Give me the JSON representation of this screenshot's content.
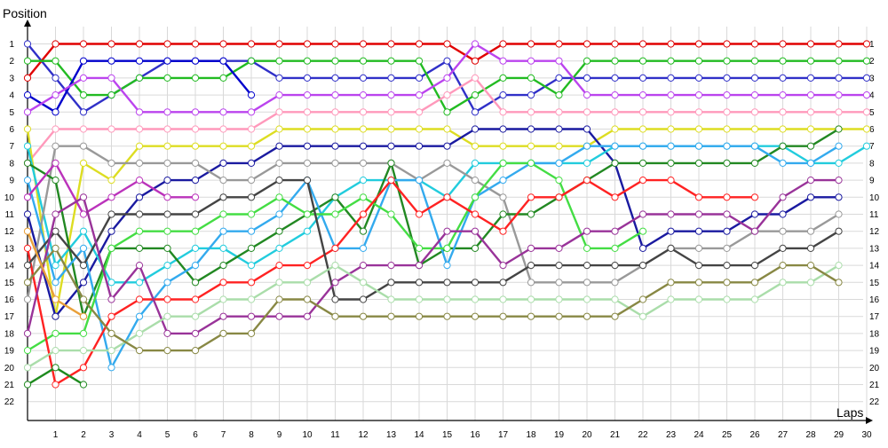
{
  "chart_data": {
    "type": "line",
    "ylabel": "Position",
    "xlabel": "Laps",
    "xlim": [
      0,
      30
    ],
    "ylim": [
      1,
      22
    ],
    "y_inverted": true,
    "grid": true,
    "x_ticks": [
      1,
      2,
      3,
      4,
      5,
      6,
      7,
      8,
      9,
      10,
      11,
      12,
      13,
      14,
      15,
      16,
      17,
      18,
      19,
      20,
      21,
      22,
      23,
      24,
      25,
      26,
      27,
      28,
      29,
      30
    ],
    "y_ticks": [
      1,
      2,
      3,
      4,
      5,
      6,
      7,
      8,
      9,
      10,
      11,
      12,
      13,
      14,
      15,
      16,
      17,
      18,
      19,
      20,
      21,
      22
    ],
    "series": [
      {
        "color": "#3030c8",
        "values": [
          1,
          3,
          5,
          4,
          3,
          2,
          2,
          2,
          2,
          3,
          3,
          3,
          3,
          3,
          3,
          2,
          5,
          4,
          4,
          3,
          3,
          3,
          3,
          3,
          3,
          3,
          3,
          3,
          3,
          3,
          3
        ]
      },
      {
        "color": "#e00000",
        "values": [
          3,
          1,
          1,
          1,
          1,
          1,
          1,
          1,
          1,
          1,
          1,
          1,
          1,
          1,
          1,
          1,
          2,
          1,
          1,
          1,
          1,
          1,
          1,
          1,
          1,
          1,
          1,
          1,
          1,
          1,
          1
        ]
      },
      {
        "color": "#22bb22",
        "values": [
          2,
          2,
          4,
          4,
          3,
          3,
          3,
          3,
          2,
          2,
          2,
          2,
          2,
          2,
          2,
          5,
          4,
          3,
          3,
          4,
          2,
          2,
          2,
          2,
          2,
          2,
          2,
          2,
          2,
          2,
          2
        ]
      },
      {
        "color": "#0000cc",
        "values": [
          4,
          5,
          2,
          2,
          2,
          2,
          2,
          2,
          4
        ]
      },
      {
        "color": "#bb44ee",
        "values": [
          5,
          4,
          3,
          3,
          5,
          5,
          5,
          5,
          5,
          4,
          4,
          4,
          4,
          4,
          4,
          3,
          1,
          2,
          2,
          2,
          4,
          4,
          4,
          4,
          4,
          4,
          4,
          4,
          4,
          4,
          4
        ]
      },
      {
        "color": "#ff99bb",
        "values": [
          8,
          6,
          6,
          6,
          6,
          6,
          6,
          6,
          6,
          5,
          5,
          5,
          5,
          5,
          5,
          4,
          3,
          5,
          5,
          5,
          5,
          5,
          5,
          5,
          5,
          5,
          5,
          5,
          5,
          5,
          5
        ]
      },
      {
        "color": "#dddd22",
        "values": [
          6,
          17,
          8,
          9,
          7,
          7,
          7,
          7,
          7,
          6,
          6,
          6,
          6,
          6,
          6,
          6,
          7,
          7,
          7,
          7,
          7,
          6,
          6,
          6,
          6,
          6,
          6,
          6,
          6,
          6,
          6
        ]
      },
      {
        "color": "#1a1aa0",
        "values": [
          11,
          17,
          15,
          12,
          10,
          9,
          9,
          8,
          8,
          7,
          7,
          7,
          7,
          7,
          7,
          7,
          6,
          6,
          6,
          6,
          6,
          8,
          13,
          12,
          12,
          12,
          11,
          11,
          10,
          10
        ]
      },
      {
        "color": "#22ccdd",
        "values": [
          7,
          14,
          12,
          15,
          15,
          14,
          13,
          13,
          14,
          13,
          12,
          10,
          9,
          9,
          9,
          10,
          8,
          8,
          8,
          8,
          8,
          7,
          7,
          7,
          7,
          7,
          7,
          7,
          8,
          8,
          7
        ]
      },
      {
        "color": "#999999",
        "values": [
          16,
          7,
          7,
          8,
          8,
          8,
          8,
          9,
          9,
          8,
          8,
          8,
          8,
          8,
          9,
          8,
          9,
          10,
          15,
          15,
          15,
          15,
          14,
          13,
          13,
          13,
          12,
          12,
          12,
          11
        ]
      },
      {
        "color": "#228822",
        "values": [
          8,
          9,
          17,
          13,
          13,
          13,
          15,
          14,
          13,
          12,
          11,
          10,
          12,
          8,
          14,
          13,
          13,
          11,
          11,
          10,
          9,
          8,
          8,
          8,
          8,
          8,
          8,
          7,
          7,
          6
        ]
      },
      {
        "color": "#33aaee",
        "values": [
          9,
          15,
          13,
          20,
          17,
          15,
          14,
          12,
          12,
          11,
          9,
          13,
          13,
          9,
          9,
          14,
          10,
          9,
          8,
          8,
          7,
          7,
          7,
          7,
          7,
          7,
          7,
          8,
          8,
          7
        ]
      },
      {
        "color": "#44dd44",
        "values": [
          19,
          18,
          18,
          13,
          12,
          12,
          12,
          11,
          11,
          10,
          11,
          11,
          10,
          11,
          13,
          13,
          10,
          8,
          8,
          9,
          13,
          13,
          12,
          null,
          null,
          null,
          null,
          null,
          null,
          null,
          null
        ]
      },
      {
        "color": "#bb33bb",
        "values": [
          10,
          8,
          11,
          10,
          9,
          10,
          10
        ]
      },
      {
        "color": "#ff2222",
        "values": [
          13,
          21,
          20,
          17,
          16,
          16,
          16,
          15,
          15,
          14,
          14,
          13,
          11,
          9,
          11,
          10,
          11,
          12,
          10,
          10,
          9,
          10,
          9,
          9,
          10,
          10,
          10
        ]
      },
      {
        "color": "#444444",
        "values": [
          14,
          12,
          14,
          11,
          11,
          11,
          11,
          10,
          10,
          9,
          9,
          16,
          16,
          15,
          15,
          15,
          15,
          15,
          14,
          14,
          14,
          14,
          14,
          13,
          14,
          14,
          14,
          13,
          13,
          12
        ]
      },
      {
        "color": "#993399",
        "values": [
          18,
          11,
          10,
          16,
          14,
          18,
          18,
          17,
          17,
          17,
          17,
          15,
          14,
          14,
          14,
          12,
          12,
          14,
          13,
          13,
          12,
          12,
          11,
          11,
          11,
          11,
          12,
          10,
          9,
          9
        ]
      },
      {
        "color": "#aaddaa",
        "values": [
          20,
          19,
          19,
          19,
          18,
          17,
          17,
          16,
          16,
          15,
          15,
          14,
          15,
          16,
          16,
          16,
          16,
          16,
          16,
          16,
          16,
          16,
          17,
          16,
          16,
          16,
          16,
          15,
          15,
          14
        ]
      },
      {
        "color": "#888844",
        "values": [
          15,
          13,
          16,
          18,
          19,
          19,
          19,
          18,
          18,
          16,
          16,
          17,
          17,
          17,
          17,
          17,
          17,
          17,
          17,
          17,
          17,
          17,
          16,
          15,
          15,
          15,
          15,
          14,
          14,
          15
        ]
      },
      {
        "color": "#1e8a1e",
        "values": [
          21,
          20,
          21
        ]
      },
      {
        "color": "#e9a03a",
        "values": [
          12,
          16,
          17
        ]
      }
    ]
  }
}
